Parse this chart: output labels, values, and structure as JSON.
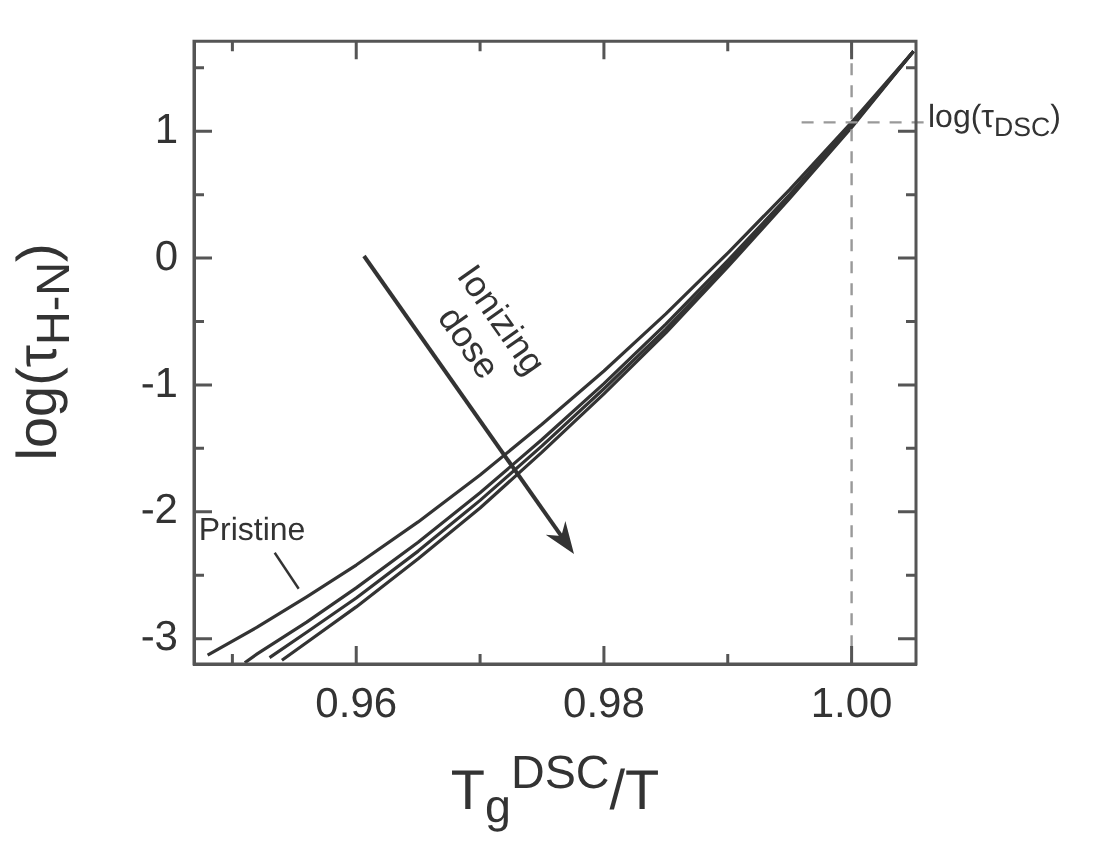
{
  "chart_data": {
    "type": "line",
    "xlabel": "T$_{g}$$^{DSC}$/T",
    "ylabel": "log(τ$_{H-N}$)",
    "annotations": [
      "Ionizing dose"
    ],
    "xlim": [
      0.9469,
      1.0052
    ],
    "ylim": [
      -3.2,
      1.71
    ],
    "xticks": [
      {
        "value": 0.95,
        "label": null
      },
      0.96,
      {
        "value": 0.97,
        "label": null
      },
      0.98,
      {
        "value": 0.99,
        "label": null
      },
      {
        "value": 1.0,
        "label": "1.00"
      }
    ],
    "yticks": [
      -3,
      {
        "value": -2.5,
        "label": null
      },
      -2,
      {
        "value": -1.5,
        "label": null
      },
      -1,
      {
        "value": -0.5,
        "label": null
      },
      0,
      {
        "value": 0.5,
        "label": null
      },
      1,
      {
        "value": 1.5,
        "label": null
      }
    ],
    "grid": false,
    "legend": false,
    "marker": "none",
    "line_style": "solid",
    "ref_lines": [
      {
        "axis": "x",
        "value": 1.0,
        "line_style": "dashed",
        "color": "#999999"
      },
      {
        "axis": "y",
        "value": 1.07,
        "label": "log(τ$_{DSC}$)",
        "line_style": "dashed",
        "color": "#999999"
      }
    ],
    "series": [
      {
        "name": "Pristine",
        "color": "#333333",
        "x": [
          0.948,
          0.952,
          0.956,
          0.96,
          0.965,
          0.97,
          0.975,
          0.98,
          0.985,
          0.99,
          0.995,
          1.0,
          1.005
        ],
        "values": [
          -3.13,
          -2.91,
          -2.67,
          -2.42,
          -2.08,
          -1.71,
          -1.31,
          -0.89,
          -0.44,
          0.04,
          0.54,
          1.07,
          1.63
        ]
      },
      {
        "color": "#333333",
        "x": [
          0.951,
          0.952,
          0.956,
          0.96,
          0.965,
          0.97,
          0.975,
          0.98,
          0.985,
          0.99,
          0.995,
          1.0,
          1.005
        ],
        "values": [
          -3.19,
          -3.12,
          -2.87,
          -2.6,
          -2.24,
          -1.85,
          -1.43,
          -0.99,
          -0.52,
          -0.02,
          0.5,
          1.05,
          1.63
        ]
      },
      {
        "color": "#333333",
        "x": [
          0.953,
          0.956,
          0.96,
          0.965,
          0.97,
          0.975,
          0.98,
          0.985,
          0.99,
          0.995,
          1.0,
          1.005
        ],
        "values": [
          -3.15,
          -2.95,
          -2.68,
          -2.31,
          -1.91,
          -1.48,
          -1.03,
          -0.56,
          -0.05,
          0.48,
          1.04,
          1.63
        ]
      },
      {
        "color": "#333333",
        "x": [
          0.954,
          0.956,
          0.96,
          0.965,
          0.97,
          0.975,
          0.98,
          0.985,
          0.99,
          0.995,
          1.0,
          1.005
        ],
        "values": [
          -3.17,
          -3.03,
          -2.75,
          -2.37,
          -1.97,
          -1.53,
          -1.07,
          -0.59,
          -0.07,
          0.47,
          1.03,
          1.63
        ]
      }
    ]
  }
}
